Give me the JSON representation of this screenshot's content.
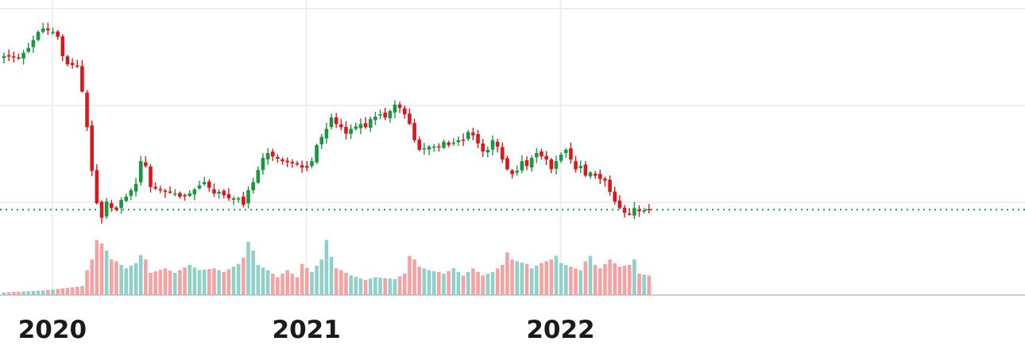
{
  "chart_data": {
    "type": "candlestick",
    "title": "",
    "xlabel": "",
    "ylabel": "",
    "grid": true,
    "last_price_line": true,
    "colors": {
      "up": "#1a9641",
      "down": "#d7191c",
      "volume_up": "#8fd0c8",
      "volume_down": "#f3a3a3",
      "last_price_line": "#1a9641",
      "grid": "#eeeeee",
      "baseline": "#cccccc"
    },
    "x_tick_labels": [
      {
        "label": "2020",
        "week": 10
      },
      {
        "label": "2021",
        "week": 62
      },
      {
        "label": "2022",
        "week": 114
      }
    ],
    "weeks": 156,
    "price_anchors": [
      [
        0,
        140
      ],
      [
        3,
        139
      ],
      [
        5,
        145
      ],
      [
        7,
        155
      ],
      [
        8,
        157
      ],
      [
        9,
        156
      ],
      [
        10,
        155
      ],
      [
        11,
        152
      ],
      [
        12,
        140
      ],
      [
        13,
        135
      ],
      [
        15,
        134
      ],
      [
        16,
        118
      ],
      [
        17,
        96
      ],
      [
        18,
        69
      ],
      [
        19,
        49
      ],
      [
        20,
        40
      ],
      [
        21,
        50
      ],
      [
        22,
        46
      ],
      [
        23,
        45
      ],
      [
        24,
        51
      ],
      [
        25,
        53
      ],
      [
        27,
        61
      ],
      [
        28,
        75
      ],
      [
        29,
        72
      ],
      [
        30,
        59
      ],
      [
        31,
        58
      ],
      [
        33,
        56
      ],
      [
        35,
        55
      ],
      [
        36,
        53
      ],
      [
        38,
        55
      ],
      [
        40,
        60
      ],
      [
        41,
        62
      ],
      [
        43,
        55
      ],
      [
        44,
        56
      ],
      [
        46,
        52
      ],
      [
        48,
        52
      ],
      [
        49,
        48
      ],
      [
        50,
        57
      ],
      [
        51,
        62
      ],
      [
        53,
        77
      ],
      [
        54,
        80
      ],
      [
        55,
        78
      ],
      [
        57,
        75
      ],
      [
        60,
        73
      ],
      [
        61,
        71
      ],
      [
        62,
        71
      ],
      [
        63,
        75
      ],
      [
        64,
        85
      ],
      [
        65,
        90
      ],
      [
        66,
        95
      ],
      [
        67,
        102
      ],
      [
        68,
        98
      ],
      [
        69,
        96
      ],
      [
        70,
        92
      ],
      [
        71,
        95
      ],
      [
        73,
        98
      ],
      [
        74,
        96
      ],
      [
        75,
        101
      ],
      [
        77,
        104
      ],
      [
        78,
        102
      ],
      [
        79,
        106
      ],
      [
        80,
        110
      ],
      [
        81,
        108
      ],
      [
        82,
        104
      ],
      [
        83,
        98
      ],
      [
        84,
        88
      ],
      [
        85,
        82
      ],
      [
        87,
        84
      ],
      [
        89,
        84
      ],
      [
        90,
        87
      ],
      [
        91,
        85
      ],
      [
        93,
        88
      ],
      [
        94,
        88
      ],
      [
        95,
        93
      ],
      [
        96,
        91
      ],
      [
        97,
        86
      ],
      [
        98,
        81
      ],
      [
        99,
        82
      ],
      [
        100,
        88
      ],
      [
        101,
        84
      ],
      [
        102,
        76
      ],
      [
        103,
        70
      ],
      [
        104,
        67
      ],
      [
        105,
        69
      ],
      [
        106,
        75
      ],
      [
        107,
        72
      ],
      [
        108,
        77
      ],
      [
        109,
        80
      ],
      [
        111,
        76
      ],
      [
        112,
        70
      ],
      [
        113,
        75
      ],
      [
        114,
        79
      ],
      [
        115,
        82
      ],
      [
        116,
        76
      ],
      [
        117,
        70
      ],
      [
        118,
        72
      ],
      [
        119,
        66
      ],
      [
        120,
        68
      ],
      [
        121,
        66
      ],
      [
        122,
        64
      ],
      [
        123,
        63
      ],
      [
        124,
        56
      ],
      [
        125,
        50
      ],
      [
        126,
        46
      ],
      [
        127,
        43
      ],
      [
        128,
        42
      ],
      [
        129,
        46
      ],
      [
        130,
        44
      ],
      [
        132,
        45
      ]
    ],
    "price_range": [
      0,
      160
    ],
    "volume_anchors": [
      [
        0,
        3
      ],
      [
        8,
        5
      ],
      [
        16,
        10
      ],
      [
        17,
        28
      ],
      [
        18,
        40
      ],
      [
        19,
        62
      ],
      [
        20,
        58
      ],
      [
        21,
        50
      ],
      [
        22,
        40
      ],
      [
        23,
        38
      ],
      [
        25,
        30
      ],
      [
        27,
        36
      ],
      [
        28,
        45
      ],
      [
        29,
        40
      ],
      [
        30,
        25
      ],
      [
        33,
        30
      ],
      [
        35,
        25
      ],
      [
        38,
        34
      ],
      [
        40,
        28
      ],
      [
        43,
        30
      ],
      [
        45,
        26
      ],
      [
        48,
        35
      ],
      [
        49,
        42
      ],
      [
        50,
        60
      ],
      [
        51,
        50
      ],
      [
        52,
        34
      ],
      [
        54,
        28
      ],
      [
        56,
        20
      ],
      [
        58,
        28
      ],
      [
        60,
        20
      ],
      [
        61,
        35
      ],
      [
        63,
        26
      ],
      [
        64,
        33
      ],
      [
        65,
        40
      ],
      [
        66,
        62
      ],
      [
        67,
        43
      ],
      [
        68,
        30
      ],
      [
        69,
        28
      ],
      [
        71,
        22
      ],
      [
        74,
        17
      ],
      [
        76,
        20
      ],
      [
        80,
        18
      ],
      [
        82,
        24
      ],
      [
        83,
        44
      ],
      [
        84,
        40
      ],
      [
        85,
        32
      ],
      [
        87,
        28
      ],
      [
        89,
        26
      ],
      [
        90,
        24
      ],
      [
        92,
        30
      ],
      [
        94,
        22
      ],
      [
        96,
        30
      ],
      [
        98,
        22
      ],
      [
        100,
        26
      ],
      [
        102,
        34
      ],
      [
        103,
        48
      ],
      [
        104,
        40
      ],
      [
        105,
        38
      ],
      [
        107,
        35
      ],
      [
        108,
        30
      ],
      [
        110,
        36
      ],
      [
        112,
        40
      ],
      [
        113,
        44
      ],
      [
        114,
        36
      ],
      [
        116,
        32
      ],
      [
        118,
        28
      ],
      [
        119,
        38
      ],
      [
        120,
        44
      ],
      [
        121,
        34
      ],
      [
        122,
        30
      ],
      [
        124,
        40
      ],
      [
        126,
        32
      ],
      [
        128,
        34
      ],
      [
        129,
        40
      ],
      [
        130,
        24
      ],
      [
        132,
        22
      ]
    ],
    "volume_range": [
      0,
      110
    ]
  }
}
